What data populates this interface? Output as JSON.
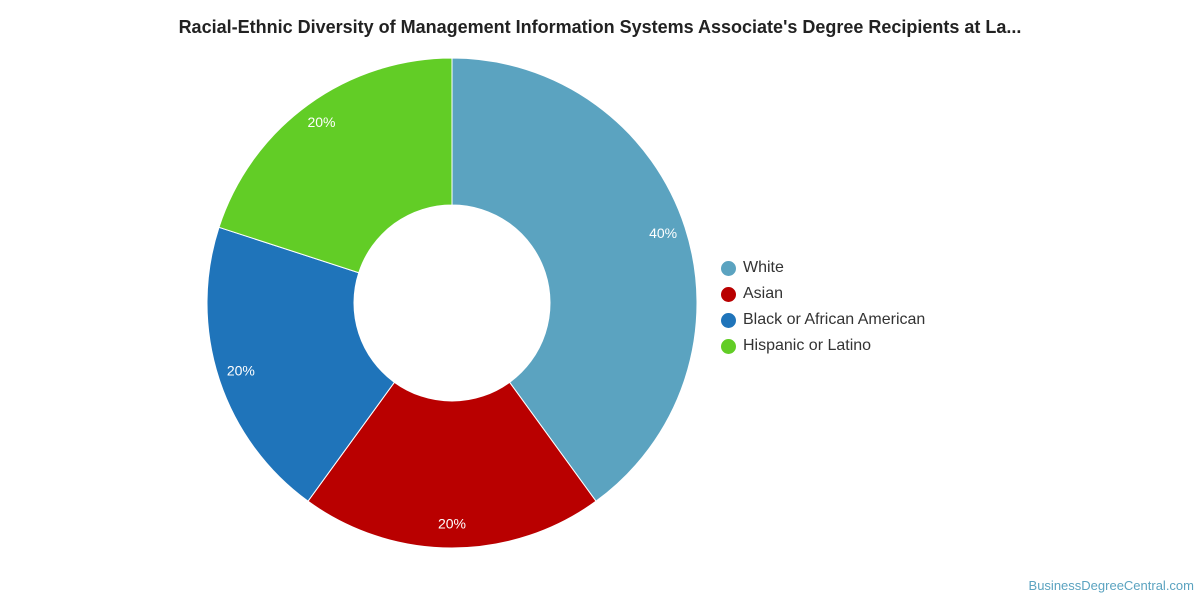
{
  "source": "BusinessDegreeCentral.com",
  "chart_data": {
    "type": "pie",
    "variant": "donut",
    "title": "Racial-Ethnic Diversity of Management Information Systems Associate's Degree Recipients at La...",
    "categories": [
      "White",
      "Asian",
      "Black or African American",
      "Hispanic or Latino"
    ],
    "values": [
      40,
      20,
      20,
      20
    ],
    "value_labels": [
      "40%",
      "20%",
      "20%",
      "20%"
    ],
    "colors": [
      "#5ba3c0",
      "#b90000",
      "#1f74ba",
      "#62cd26"
    ],
    "legend_position": "right",
    "start_angle": "top, clockwise"
  }
}
